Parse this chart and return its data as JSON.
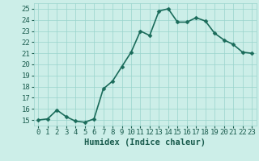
{
  "x": [
    0,
    1,
    2,
    3,
    4,
    5,
    6,
    7,
    8,
    9,
    10,
    11,
    12,
    13,
    14,
    15,
    16,
    17,
    18,
    19,
    20,
    21,
    22,
    23
  ],
  "y": [
    15.0,
    15.1,
    15.9,
    15.3,
    14.9,
    14.8,
    15.1,
    17.8,
    18.5,
    19.8,
    21.1,
    23.0,
    22.6,
    24.8,
    25.0,
    23.8,
    23.8,
    24.2,
    23.9,
    22.8,
    22.2,
    21.8,
    21.1,
    21.0
  ],
  "line_color": "#1a6b5a",
  "marker_color": "#1a6b5a",
  "bg_color": "#cceee8",
  "grid_color": "#99d4cc",
  "xlabel": "Humidex (Indice chaleur)",
  "xlim": [
    -0.5,
    23.5
  ],
  "ylim": [
    14.5,
    25.5
  ],
  "yticks": [
    15,
    16,
    17,
    18,
    19,
    20,
    21,
    22,
    23,
    24,
    25
  ],
  "xticks": [
    0,
    1,
    2,
    3,
    4,
    5,
    6,
    7,
    8,
    9,
    10,
    11,
    12,
    13,
    14,
    15,
    16,
    17,
    18,
    19,
    20,
    21,
    22,
    23
  ],
  "font_color": "#1a5c4e",
  "xlabel_fontsize": 7.5,
  "tick_fontsize": 6.5,
  "linewidth": 1.2,
  "markersize": 2.5
}
